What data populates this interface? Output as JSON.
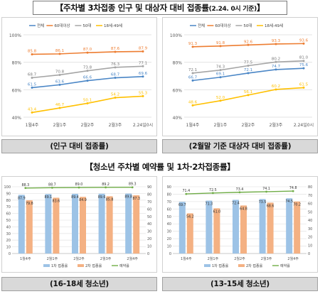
{
  "page": {
    "title_main": "【주차별 3차접종 인구 및 대상자 대비 접종률",
    "title_small": "(2.24. 0시 기준)",
    "title_end": "】",
    "subtitle": "【청소년 주차별 예약률 및 1차·2차접종률】"
  },
  "captions": {
    "top_left": "(인구 대비 접종률)",
    "top_right": "(2월말 기준 대상자 대비 접종률)",
    "bottom_left": "(16-18세 청소년)",
    "bottom_right": "(13-15세 청소년)"
  },
  "colors": {
    "all": "#4a86c6",
    "age60": "#ed7d31",
    "age50": "#a5a5a5",
    "age18_49": "#ffc000",
    "dose1": "#9dc3e6",
    "dose2": "#f4b183",
    "booking": "#70ad47"
  },
  "chart_data": [
    {
      "id": "top_left",
      "type": "line",
      "categories": [
        "1월4주",
        "2월1주",
        "2월2주",
        "2월3주",
        "2.24일0시"
      ],
      "ylim": [
        40,
        100
      ],
      "yticks": [
        "40%",
        "60%",
        "80%",
        "100%"
      ],
      "legend_position": "top",
      "series": [
        {
          "name": "전체",
          "key": "all",
          "values": [
            61.5,
            63.6,
            66.6,
            68.7,
            69.6
          ]
        },
        {
          "name": "60대이상",
          "key": "age60",
          "values": [
            85.8,
            86.1,
            87.0,
            87.6,
            87.9
          ]
        },
        {
          "name": "50대",
          "key": "age50",
          "values": [
            68.7,
            70.8,
            73.8,
            76.3,
            77.1
          ]
        },
        {
          "name": "18세-49세",
          "key": "age18_49",
          "values": [
            43.4,
            46.7,
            50.1,
            54.2,
            55.3
          ]
        }
      ]
    },
    {
      "id": "top_right",
      "type": "line",
      "categories": [
        "1월4주",
        "2월1주",
        "2월2주",
        "2월3주",
        "2.24일0시"
      ],
      "ylim": [
        40,
        100
      ],
      "yticks": [
        "40%",
        "60%",
        "80%",
        "100%"
      ],
      "legend_position": "top",
      "series": [
        {
          "name": "전체",
          "key": "all",
          "values": [
            66.7,
            69.1,
            72.1,
            74.7,
            75.6
          ]
        },
        {
          "name": "60대이상",
          "key": "age60",
          "values": [
            91.3,
            91.8,
            92.6,
            93.3,
            93.6
          ]
        },
        {
          "name": "50대",
          "key": "age50",
          "values": [
            72.1,
            74.3,
            77.5,
            80.2,
            81.0
          ]
        },
        {
          "name": "18세-49세",
          "key": "age18_49",
          "values": [
            48.6,
            52.0,
            56.1,
            60.2,
            61.5
          ]
        }
      ]
    },
    {
      "id": "bottom_left",
      "type": "bar",
      "categories": [
        "1월4주",
        "2월1주",
        "2월2주",
        "2월3주",
        "2월4주"
      ],
      "ylim_left": [
        0,
        100
      ],
      "ylim_right": [
        0,
        90
      ],
      "yticks_left": [
        "0",
        "10",
        "20",
        "30",
        "40",
        "50",
        "60",
        "70",
        "80",
        "90",
        "100"
      ],
      "yticks_right": [
        "0",
        "10",
        "20",
        "30",
        "40",
        "50",
        "60",
        "70",
        "80",
        "90"
      ],
      "legend_position": "bottom",
      "series": [
        {
          "name": "1차 접종률",
          "key": "dose1",
          "kind": "bar",
          "axis": "left",
          "values": [
            87.9,
            89.1,
            89.4,
            89.6,
            89.8
          ]
        },
        {
          "name": "2차 접종률",
          "key": "dose2",
          "kind": "bar",
          "axis": "left",
          "values": [
            79.8,
            83.6,
            84.9,
            85.8,
            87.3
          ]
        },
        {
          "name": "예약률",
          "key": "booking",
          "kind": "line",
          "axis": "right",
          "values": [
            88.3,
            88.7,
            89.0,
            89.2,
            89.3
          ]
        }
      ]
    },
    {
      "id": "bottom_right",
      "type": "bar",
      "categories": [
        "1월4주",
        "2월1주",
        "2월2주",
        "2월3주",
        "2월4주"
      ],
      "ylim_left": [
        0,
        90
      ],
      "ylim_right": [
        0,
        80
      ],
      "yticks_left": [
        "0",
        "10",
        "20",
        "30",
        "40",
        "50",
        "60",
        "70",
        "80",
        "90"
      ],
      "yticks_right": [
        "0",
        "10",
        "20",
        "30",
        "40",
        "50",
        "60",
        "70",
        "80"
      ],
      "legend_position": "bottom",
      "series": [
        {
          "name": "1차 접종률",
          "key": "dose1",
          "kind": "bar",
          "axis": "left",
          "values": [
            69.7,
            71.3,
            72.4,
            73.5,
            74.5
          ]
        },
        {
          "name": "2차 접종률",
          "key": "dose2",
          "kind": "bar",
          "axis": "left",
          "values": [
            54.2,
            61.0,
            64.8,
            68.6,
            70.2
          ]
        },
        {
          "name": "예약률",
          "key": "booking",
          "kind": "line",
          "axis": "right",
          "values": [
            71.4,
            72.5,
            73.4,
            74.1,
            74.8
          ]
        }
      ]
    }
  ]
}
